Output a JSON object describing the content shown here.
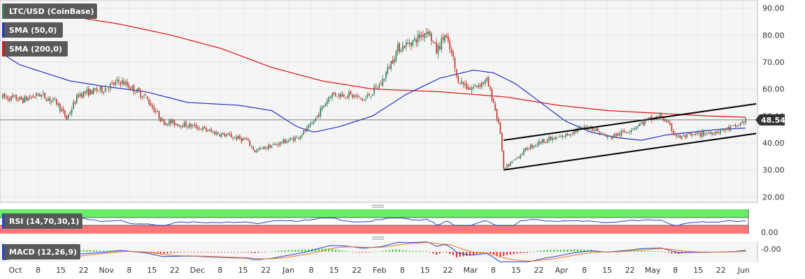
{
  "colors": {
    "up_candle": "#3a7d5c",
    "down_candle": "#c0392b",
    "sma50": "#2233cc",
    "sma200": "#dd1111",
    "channel": "#000000",
    "rsi_line": "#2244cc",
    "rsi_overbought": "#66ee66",
    "rsi_oversold": "#ff7777",
    "macd_line": "#2244cc",
    "signal_line": "#ee7722",
    "hist_pos": "#33cc33",
    "hist_neg": "#ee2222",
    "legend_bg": "#595959",
    "price_tag_bg": "#333333"
  },
  "chart_data": [
    {
      "type": "candlestick",
      "legend": [
        "LTC/USD (CoinBase)",
        "SMA (50,0)",
        "SMA (200,0)"
      ],
      "ylim": [
        18,
        93
      ],
      "yticks": [
        "90.00",
        "80.00",
        "70.00",
        "60.00",
        "50.00",
        "40.00",
        "30.00",
        "20.00"
      ],
      "ytick_values": [
        90,
        80,
        70,
        60,
        50,
        40,
        30,
        20
      ],
      "last_price": "48.54",
      "last_price_value": 48.54,
      "x_dates": [
        "Oct",
        "8",
        "15",
        "22",
        "Nov",
        "8",
        "15",
        "22",
        "Dec",
        "8",
        "15",
        "22",
        "Jan",
        "8",
        "15",
        "22",
        "Feb",
        "8",
        "15",
        "22",
        "Mar",
        "8",
        "15",
        "22",
        "Apr",
        "8",
        "15",
        "22",
        "May",
        "8",
        "15",
        "22",
        "Jun"
      ],
      "price_anchors": [
        [
          0,
          57
        ],
        [
          12,
          56
        ],
        [
          22,
          58
        ],
        [
          32,
          55
        ],
        [
          38,
          49
        ],
        [
          45,
          58
        ],
        [
          60,
          60
        ],
        [
          70,
          63
        ],
        [
          85,
          57
        ],
        [
          95,
          48
        ],
        [
          115,
          46
        ],
        [
          125,
          44
        ],
        [
          145,
          41
        ],
        [
          150,
          37
        ],
        [
          165,
          40
        ],
        [
          175,
          42
        ],
        [
          183,
          46
        ],
        [
          195,
          58
        ],
        [
          205,
          58
        ],
        [
          215,
          56
        ],
        [
          225,
          62
        ],
        [
          235,
          75
        ],
        [
          245,
          78
        ],
        [
          253,
          82
        ],
        [
          258,
          74
        ],
        [
          263,
          80
        ],
        [
          268,
          71
        ],
        [
          270,
          64
        ],
        [
          278,
          60
        ],
        [
          284,
          62
        ],
        [
          288,
          63
        ],
        [
          292,
          55
        ],
        [
          296,
          44
        ],
        [
          297,
          37
        ],
        [
          298,
          30
        ],
        [
          305,
          34
        ],
        [
          312,
          38
        ],
        [
          322,
          41
        ],
        [
          332,
          42
        ],
        [
          342,
          45
        ],
        [
          350,
          46
        ],
        [
          360,
          42
        ],
        [
          370,
          44
        ],
        [
          382,
          48
        ],
        [
          392,
          50
        ],
        [
          398,
          45
        ],
        [
          402,
          42
        ],
        [
          412,
          43
        ],
        [
          422,
          44
        ],
        [
          430,
          45
        ],
        [
          436,
          46
        ],
        [
          442,
          48.5
        ]
      ],
      "sma50_anchors": [
        [
          0,
          73
        ],
        [
          10,
          69
        ],
        [
          20,
          67
        ],
        [
          40,
          63
        ],
        [
          60,
          61
        ],
        [
          85,
          59
        ],
        [
          110,
          55
        ],
        [
          140,
          54
        ],
        [
          160,
          52
        ],
        [
          175,
          46
        ],
        [
          185,
          44
        ],
        [
          200,
          46
        ],
        [
          220,
          50
        ],
        [
          240,
          58
        ],
        [
          260,
          64
        ],
        [
          280,
          67
        ],
        [
          292,
          66
        ],
        [
          305,
          62
        ],
        [
          320,
          55
        ],
        [
          335,
          48
        ],
        [
          350,
          44
        ],
        [
          365,
          42
        ],
        [
          380,
          41
        ],
        [
          395,
          43
        ],
        [
          410,
          44
        ],
        [
          425,
          45
        ],
        [
          442,
          45.5
        ]
      ],
      "sma200_anchors": [
        [
          0,
          90
        ],
        [
          30,
          88
        ],
        [
          70,
          84
        ],
        [
          100,
          80
        ],
        [
          130,
          75
        ],
        [
          160,
          68
        ],
        [
          190,
          63
        ],
        [
          220,
          60
        ],
        [
          260,
          59
        ],
        [
          300,
          57
        ],
        [
          330,
          54
        ],
        [
          360,
          52
        ],
        [
          390,
          51
        ],
        [
          420,
          50
        ],
        [
          442,
          49.5
        ]
      ],
      "channel_lines": [
        {
          "from": [
            298,
            41
          ],
          "to": [
            442,
            54.5
          ]
        },
        {
          "from": [
            298,
            30
          ],
          "to": [
            442,
            43.5
          ]
        }
      ]
    },
    {
      "type": "line",
      "legend": "RSI (14,70,30,1)",
      "ylim": [
        0,
        100
      ],
      "yticks": [
        "0.00"
      ],
      "ytick_values": [
        0
      ],
      "overbought": 70,
      "oversold": 30
    },
    {
      "type": "line+histogram",
      "legend": "MACD (12,26,9)",
      "yticks": [
        "-0.00"
      ],
      "ytick_values": [
        0
      ]
    }
  ]
}
